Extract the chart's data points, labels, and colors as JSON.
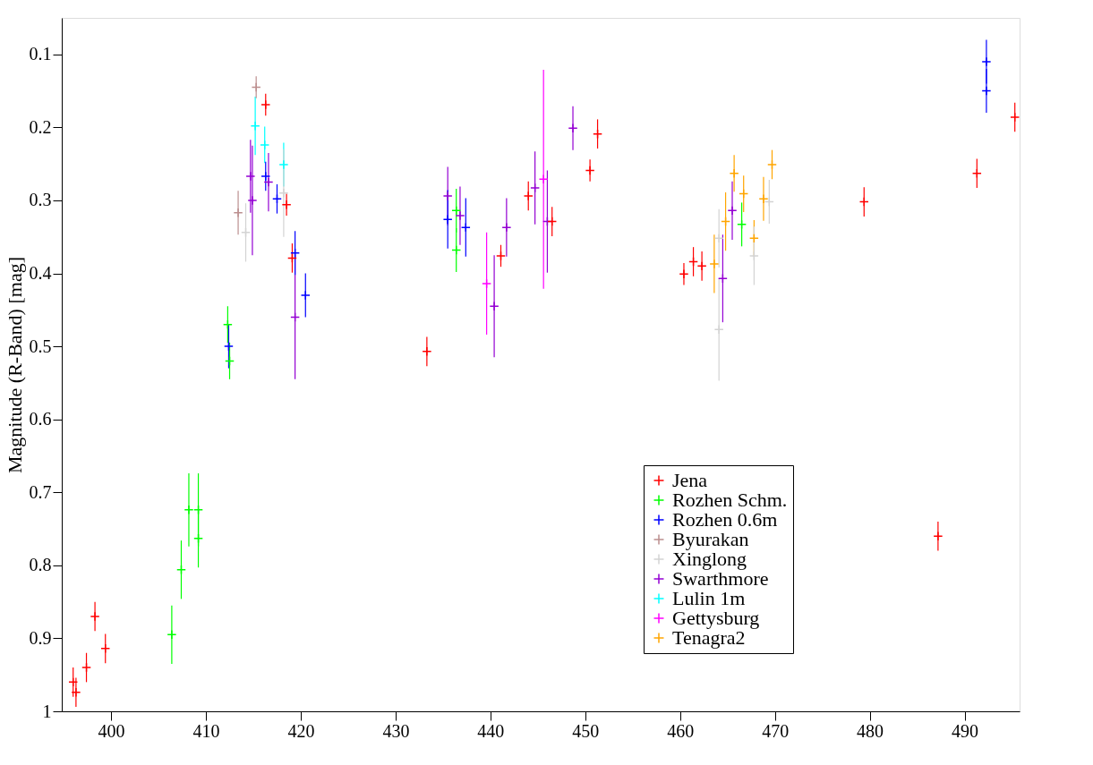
{
  "chart_data": {
    "type": "scatter",
    "ylabel": "Magnitude (R-Band) [mag]",
    "xlim": [
      394.8,
      495.8
    ],
    "xticks": [
      400,
      410,
      420,
      430,
      440,
      450,
      460,
      470,
      480,
      490
    ],
    "ylim": [
      1.0,
      0.05
    ],
    "yticks": [
      0.1,
      0.2,
      0.3,
      0.4,
      0.5,
      0.6,
      0.7,
      0.8,
      0.9,
      1
    ],
    "grid": false,
    "legend": "bottom right",
    "marker": "cross",
    "series": [
      {
        "name": "Jena",
        "color": "#ff0000",
        "x": [
          396.0,
          396.3,
          397.4,
          398.3,
          399.4,
          416.3,
          418.5,
          419.1,
          433.3,
          441.1,
          444.0,
          446.5,
          450.5,
          451.3,
          460.4,
          461.4,
          462.3,
          479.4,
          487.2,
          491.3,
          495.3
        ],
        "values": [
          0.96,
          0.974,
          0.94,
          0.87,
          0.914,
          0.169,
          0.306,
          0.379,
          0.507,
          0.376,
          0.294,
          0.329,
          0.259,
          0.209,
          0.401,
          0.384,
          0.39,
          0.302,
          0.76,
          0.263,
          0.186
        ],
        "errors": [
          0.02,
          0.02,
          0.02,
          0.02,
          0.02,
          0.015,
          0.015,
          0.02,
          0.02,
          0.015,
          0.02,
          0.02,
          0.015,
          0.02,
          0.015,
          0.02,
          0.02,
          0.02,
          0.02,
          0.02,
          0.02
        ]
      },
      {
        "name": "Rozhen Schm.",
        "color": "#00ff00",
        "x": [
          406.4,
          407.4,
          408.2,
          409.2,
          409.2,
          412.3,
          412.5,
          436.4,
          436.4,
          466.5
        ],
        "values": [
          0.895,
          0.806,
          0.724,
          0.724,
          0.763,
          0.47,
          0.52,
          0.314,
          0.368,
          0.333
        ],
        "errors": [
          0.04,
          0.04,
          0.05,
          0.05,
          0.04,
          0.025,
          0.025,
          0.03,
          0.03,
          0.03
        ]
      },
      {
        "name": "Rozhen 0.6m",
        "color": "#0000ff",
        "x": [
          412.4,
          416.3,
          417.5,
          419.4,
          420.5,
          435.5,
          437.4,
          492.3,
          492.3
        ],
        "values": [
          0.5,
          0.267,
          0.298,
          0.372,
          0.43,
          0.326,
          0.337,
          0.11,
          0.15
        ],
        "errors": [
          0.03,
          0.02,
          0.02,
          0.03,
          0.03,
          0.04,
          0.04,
          0.03,
          0.03
        ]
      },
      {
        "name": "Byurakan",
        "color": "#bc8f8f",
        "x": [
          413.4,
          415.3
        ],
        "values": [
          0.317,
          0.145
        ],
        "errors": [
          0.03,
          0.015
        ]
      },
      {
        "name": "Xinglong",
        "color": "#d3d3d3",
        "x": [
          414.2,
          418.2,
          464.1,
          464.1,
          467.8,
          469.4
        ],
        "values": [
          0.344,
          0.29,
          0.477,
          0.352,
          0.376,
          0.302
        ],
        "errors": [
          0.04,
          0.06,
          0.07,
          0.04,
          0.04,
          0.03
        ]
      },
      {
        "name": "Swarthmore",
        "color": "#9400d3",
        "x": [
          414.7,
          414.9,
          416.6,
          419.4,
          435.5,
          436.8,
          440.4,
          441.7,
          444.7,
          446.0,
          448.7,
          464.5,
          465.5
        ],
        "values": [
          0.267,
          0.3,
          0.275,
          0.46,
          0.294,
          0.321,
          0.445,
          0.337,
          0.283,
          0.329,
          0.201,
          0.407,
          0.314
        ],
        "errors": [
          0.05,
          0.075,
          0.04,
          0.085,
          0.04,
          0.04,
          0.07,
          0.04,
          0.05,
          0.07,
          0.03,
          0.06,
          0.04
        ]
      },
      {
        "name": "Lulin 1m",
        "color": "#00ffff",
        "x": [
          415.2,
          416.2,
          418.2
        ],
        "values": [
          0.198,
          0.224,
          0.251
        ],
        "errors": [
          0.04,
          0.025,
          0.03
        ]
      },
      {
        "name": "Gettysburg",
        "color": "#ff00ff",
        "x": [
          439.6,
          445.6
        ],
        "values": [
          0.414,
          0.271
        ],
        "errors": [
          0.07,
          0.15
        ]
      },
      {
        "name": "Tenagra2",
        "color": "#ffa500",
        "x": [
          463.6,
          464.8,
          465.7,
          466.7,
          467.8,
          468.8,
          469.7
        ],
        "values": [
          0.387,
          0.329,
          0.263,
          0.291,
          0.352,
          0.298,
          0.251
        ],
        "errors": [
          0.04,
          0.04,
          0.025,
          0.025,
          0.025,
          0.03,
          0.02
        ]
      }
    ]
  }
}
